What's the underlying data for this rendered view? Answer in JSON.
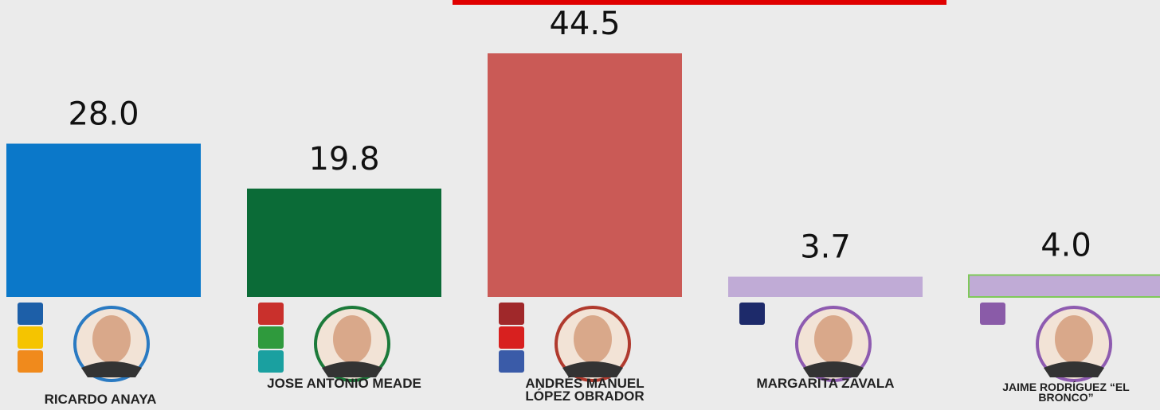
{
  "chart_data": {
    "type": "bar",
    "categories": [
      "RICARDO ANAYA",
      "JOSE ANTONIO MEADE",
      "ANDRÉS MANUEL LÓPEZ OBRADOR",
      "MARGARITA ZAVALA",
      "JAIME RODRÍGUEZ “EL BRONCO”"
    ],
    "values": [
      28.0,
      19.8,
      44.5,
      3.7,
      4.0
    ],
    "value_labels": [
      "28.0",
      "19.8",
      "44.5",
      "3.7",
      "4.0"
    ],
    "colors": [
      "#0b78c9",
      "#0b6b37",
      "#ca5a56",
      "#c0abd6",
      "#c0abd6"
    ]
  }
}
